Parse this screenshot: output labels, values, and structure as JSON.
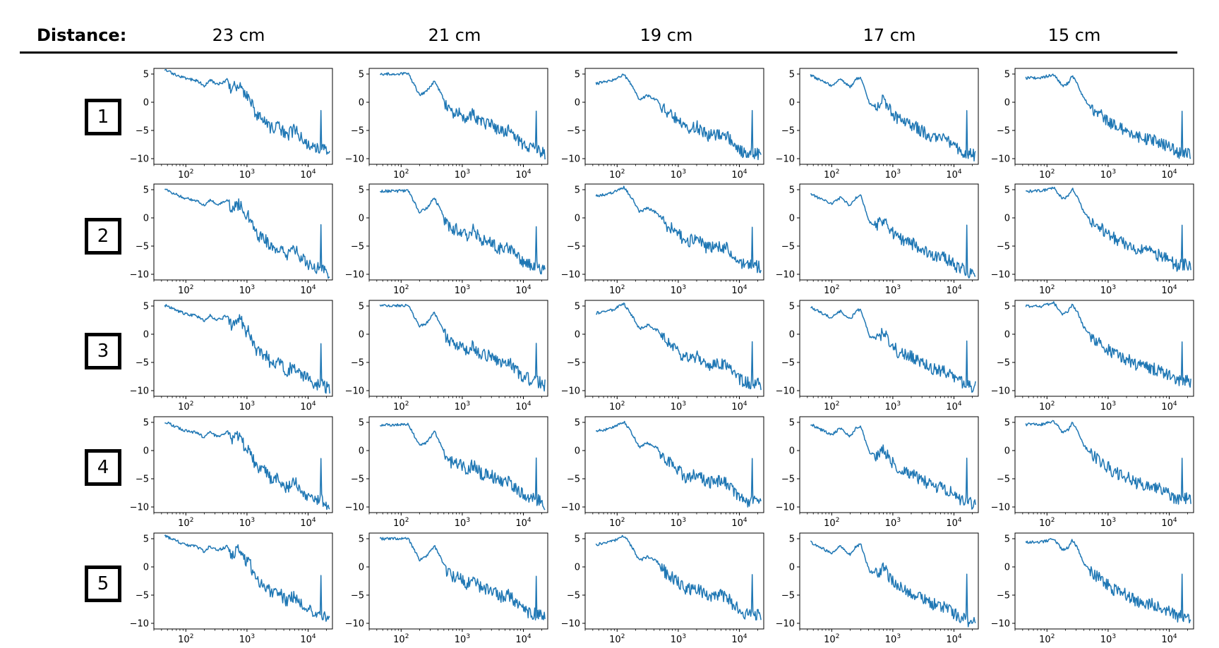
{
  "header": {
    "label": "Distance:",
    "columns": [
      "23 cm",
      "21 cm",
      "19 cm",
      "17 cm",
      "15 cm"
    ]
  },
  "rows": [
    "1",
    "2",
    "3",
    "4",
    "5"
  ],
  "colors": {
    "line": "#1f77b4",
    "axes": "#000000"
  },
  "chart_data": {
    "type": "line",
    "layout": "grid of small multiples (5 rows x 5 distance columns)",
    "x_scale": "log",
    "xlim": [
      30,
      25000
    ],
    "x_ticks": [
      100,
      1000,
      10000
    ],
    "x_tick_labels": [
      "10^2",
      "10^3",
      "10^4"
    ],
    "y_ticks": [
      5,
      0,
      -5,
      -10
    ],
    "y_tick_labels": [
      "5",
      "0",
      "−5",
      "−10"
    ],
    "ylim": [
      -11,
      6
    ],
    "grid": false,
    "legend": "none",
    "spike_x": 16000,
    "series_templates": {
      "23 cm": [
        [
          45,
          5.4
        ],
        [
          70,
          4.5
        ],
        [
          100,
          3.8
        ],
        [
          150,
          3.5
        ],
        [
          200,
          2.6
        ],
        [
          250,
          3.6
        ],
        [
          320,
          2.8
        ],
        [
          400,
          3.1
        ],
        [
          480,
          3.7
        ],
        [
          550,
          1.9
        ],
        [
          650,
          2.6
        ],
        [
          800,
          3.0
        ],
        [
          900,
          1.0
        ],
        [
          1100,
          0.6
        ],
        [
          1400,
          -2.5
        ],
        [
          2000,
          -3.4
        ],
        [
          2500,
          -5.0
        ],
        [
          3300,
          -4.6
        ],
        [
          4500,
          -6.3
        ],
        [
          6000,
          -5.2
        ],
        [
          8000,
          -7.0
        ],
        [
          11000,
          -8.0
        ],
        [
          14000,
          -8.6
        ],
        [
          17000,
          -8.5
        ],
        [
          20000,
          -9.2
        ],
        [
          23000,
          -10.0
        ]
      ],
      "21 cm": [
        [
          45,
          4.7
        ],
        [
          80,
          4.7
        ],
        [
          130,
          4.8
        ],
        [
          200,
          1.0
        ],
        [
          260,
          1.6
        ],
        [
          350,
          3.5
        ],
        [
          450,
          1.2
        ],
        [
          550,
          -1.0
        ],
        [
          700,
          -2.2
        ],
        [
          900,
          -2.0
        ],
        [
          1200,
          -3.5
        ],
        [
          1500,
          -2.2
        ],
        [
          2000,
          -4.0
        ],
        [
          3000,
          -4.3
        ],
        [
          4000,
          -5.5
        ],
        [
          6000,
          -5.3
        ],
        [
          8000,
          -7.0
        ],
        [
          10000,
          -7.8
        ],
        [
          13000,
          -8.4
        ],
        [
          18000,
          -8.8
        ],
        [
          23000,
          -9.5
        ]
      ],
      "19 cm": [
        [
          45,
          3.6
        ],
        [
          80,
          4.1
        ],
        [
          130,
          5.2
        ],
        [
          180,
          3.0
        ],
        [
          230,
          0.8
        ],
        [
          320,
          1.5
        ],
        [
          450,
          0.6
        ],
        [
          650,
          -1.6
        ],
        [
          900,
          -2.6
        ],
        [
          1300,
          -4.5
        ],
        [
          2000,
          -4.0
        ],
        [
          3000,
          -5.6
        ],
        [
          4500,
          -5.3
        ],
        [
          6000,
          -5.5
        ],
        [
          8000,
          -7.0
        ],
        [
          11000,
          -8.4
        ],
        [
          14000,
          -8.8
        ],
        [
          17000,
          -8.8
        ],
        [
          23000,
          -9.0
        ]
      ],
      "17 cm": [
        [
          45,
          4.7
        ],
        [
          70,
          3.6
        ],
        [
          100,
          2.8
        ],
        [
          140,
          4.0
        ],
        [
          200,
          2.5
        ],
        [
          250,
          4.0
        ],
        [
          300,
          4.3
        ],
        [
          350,
          2.0
        ],
        [
          420,
          -0.5
        ],
        [
          550,
          -0.8
        ],
        [
          700,
          0.2
        ],
        [
          900,
          -1.6
        ],
        [
          1200,
          -3.2
        ],
        [
          1600,
          -3.8
        ],
        [
          2200,
          -4.3
        ],
        [
          3000,
          -5.3
        ],
        [
          4500,
          -6.2
        ],
        [
          6000,
          -6.5
        ],
        [
          8000,
          -7.0
        ],
        [
          11000,
          -8.2
        ],
        [
          14000,
          -8.8
        ],
        [
          18000,
          -9.3
        ],
        [
          23000,
          -9.5
        ]
      ],
      "15 cm": [
        [
          45,
          4.7
        ],
        [
          80,
          4.7
        ],
        [
          130,
          5.3
        ],
        [
          180,
          3.3
        ],
        [
          220,
          3.7
        ],
        [
          260,
          5.1
        ],
        [
          320,
          3.5
        ],
        [
          400,
          1.0
        ],
        [
          550,
          -0.8
        ],
        [
          700,
          -1.5
        ],
        [
          900,
          -2.5
        ],
        [
          1200,
          -3.6
        ],
        [
          1600,
          -4.2
        ],
        [
          2300,
          -5.0
        ],
        [
          3000,
          -5.8
        ],
        [
          4500,
          -6.1
        ],
        [
          6000,
          -6.5
        ],
        [
          8000,
          -7.0
        ],
        [
          11000,
          -8.0
        ],
        [
          14000,
          -8.6
        ],
        [
          18000,
          -8.3
        ],
        [
          23000,
          -8.8
        ]
      ]
    }
  }
}
